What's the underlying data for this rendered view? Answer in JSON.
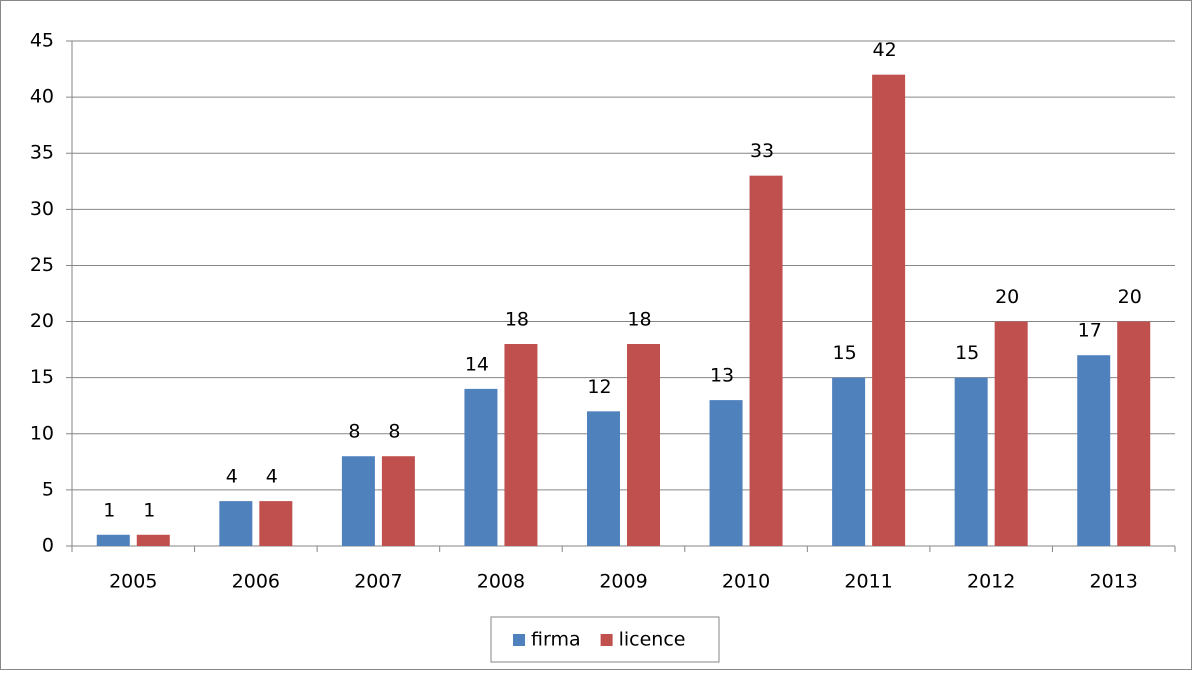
{
  "chart_data": {
    "type": "bar",
    "categories": [
      "2005",
      "2006",
      "2007",
      "2008",
      "2009",
      "2010",
      "2011",
      "2012",
      "2013"
    ],
    "series": [
      {
        "name": "firma",
        "color": "#4f81bd",
        "values": [
          1,
          4,
          8,
          14,
          12,
          13,
          15,
          15,
          17
        ]
      },
      {
        "name": "licence",
        "color": "#c0504d",
        "values": [
          1,
          4,
          8,
          18,
          18,
          33,
          42,
          20,
          20
        ]
      }
    ],
    "ylim": [
      0,
      45
    ],
    "yticks": [
      0,
      5,
      10,
      15,
      20,
      25,
      30,
      35,
      40,
      45
    ],
    "grid": true,
    "legend": "bottom"
  }
}
